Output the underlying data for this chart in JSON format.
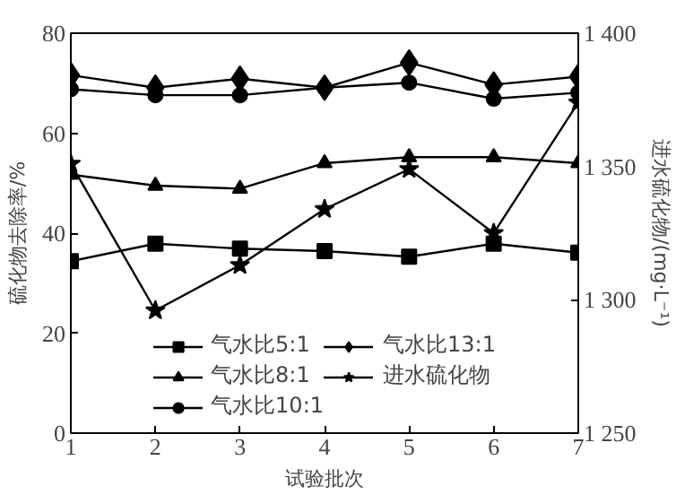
{
  "chart_data": {
    "type": "line",
    "xlabel": "试验批次",
    "ylabel": "硫化物去除率/%",
    "y2label": "进水硫化物/(mg·L⁻¹)",
    "x": [
      1,
      2,
      3,
      4,
      5,
      6,
      7
    ],
    "xlim": [
      1,
      7
    ],
    "xticks": [
      1,
      2,
      3,
      4,
      5,
      6,
      7
    ],
    "ylim": [
      0,
      80
    ],
    "yticks": [
      0,
      20,
      40,
      60,
      80
    ],
    "y2lim": [
      1250,
      1400
    ],
    "y2ticks": [
      {
        "value": 1250,
        "label": "1 250"
      },
      {
        "value": 1300,
        "label": "1 300"
      },
      {
        "value": 1350,
        "label": "1 350"
      },
      {
        "value": 1400,
        "label": "1 400"
      }
    ],
    "grid": false,
    "legend": "bottom",
    "series": [
      {
        "name": "气水比5:1",
        "color": "#000000",
        "marker": "square",
        "values": [
          34.4,
          37.9,
          36.9,
          36.4,
          35.3,
          37.9,
          36.1
        ]
      },
      {
        "name": "气水比8:1",
        "color": "#000000",
        "marker": "triangle",
        "values": [
          51.7,
          49.5,
          48.9,
          54.0,
          55.2,
          55.2,
          54.0
        ]
      },
      {
        "name": "气水比10:1",
        "color": "#000000",
        "marker": "circle",
        "values": [
          68.8,
          67.6,
          67.6,
          69.1,
          70.1,
          66.9,
          68.1
        ]
      },
      {
        "name": "气水比13:1",
        "color": "#000000",
        "marker": "diamond",
        "values": [
          71.6,
          69.1,
          70.9,
          69.1,
          74.1,
          69.7,
          71.3
        ]
      },
      {
        "name": "进水硫化物",
        "color": "#000000",
        "marker": "star",
        "axis": "y2",
        "values": [
          1351,
          1296,
          1313,
          1334,
          1349,
          1325,
          1374
        ]
      }
    ]
  }
}
